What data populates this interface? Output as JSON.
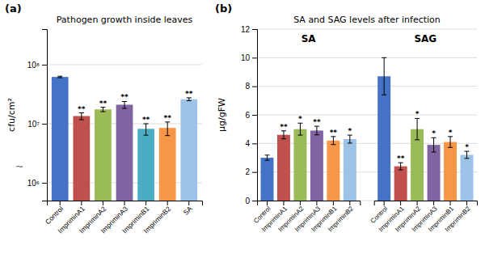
{
  "chart_data": [
    {
      "type": "bar",
      "label": "(a)",
      "title": "Pathogen growth inside leaves",
      "ylabel": "cfu/cm²",
      "categories": [
        "Control",
        "ImpriminA1",
        "ImpriminA2",
        "ImpriminA3",
        "ImpriminB1",
        "ImpriminB2",
        "SA"
      ],
      "values": [
        62000000,
        13500000,
        17500000,
        21000000,
        8200000,
        8500000,
        26000000
      ],
      "errors": [
        1800000,
        1800000,
        1500000,
        2800000,
        1800000,
        2200000,
        1500000
      ],
      "colors": [
        "#4472C4",
        "#C0504D",
        "#9BBB59",
        "#8064A2",
        "#4BACC6",
        "#F79646",
        "#9DC3E6"
      ],
      "significance": [
        null,
        "**",
        "**",
        "**",
        "**",
        "**",
        "**"
      ],
      "annotations": [
        "∼"
      ],
      "log": "y",
      "ylim": [
        500000,
        400000000
      ],
      "yticks": [
        {
          "value": 1000000,
          "label": "10⁶"
        },
        {
          "value": 10000000,
          "label": "10⁷"
        },
        {
          "value": 100000000,
          "label": "10⁸"
        }
      ],
      "grid": true
    },
    {
      "type": "bar",
      "label": "(b)",
      "title": "SA and SAG levels after infection",
      "ylabel": "μg/gFW",
      "categories": [
        "Control",
        "ImpriminA1",
        "ImpriminA2",
        "ImpriminA3",
        "ImpriminB1",
        "ImpriminB2"
      ],
      "colors": [
        "#4472C4",
        "#C0504D",
        "#9BBB59",
        "#8064A2",
        "#F79646",
        "#9DC3E6"
      ],
      "groups": [
        {
          "name": "SA",
          "values": [
            3.0,
            4.6,
            5.0,
            4.9,
            4.2,
            4.3
          ],
          "errors": [
            0.18,
            0.28,
            0.42,
            0.3,
            0.28,
            0.28
          ],
          "significance": [
            null,
            "**",
            "*",
            "**",
            "**",
            "*"
          ]
        },
        {
          "name": "SAG",
          "values": [
            8.7,
            2.4,
            5.0,
            3.9,
            4.1,
            3.2
          ],
          "errors": [
            1.3,
            0.25,
            0.75,
            0.5,
            0.38,
            0.25
          ],
          "significance": [
            null,
            "**",
            "*",
            "*",
            "*",
            "*"
          ]
        }
      ],
      "ylim": [
        0,
        12
      ],
      "yticks": [
        0,
        2,
        4,
        6,
        8,
        10,
        12
      ],
      "grid": true
    }
  ]
}
